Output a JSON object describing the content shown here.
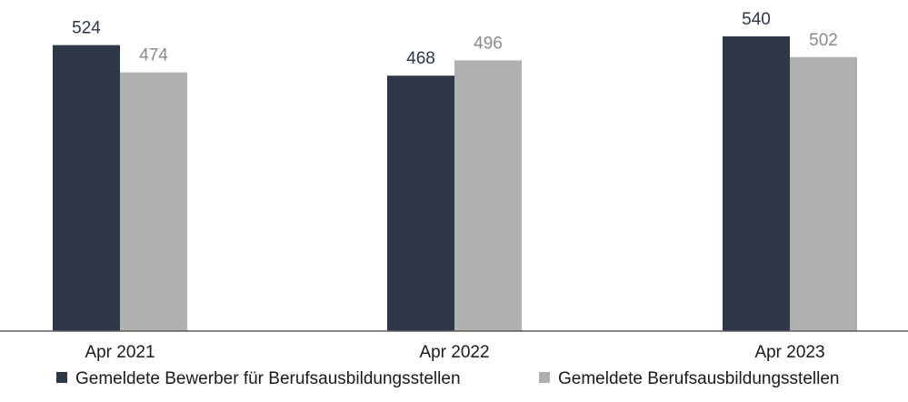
{
  "chart_data": {
    "type": "bar",
    "categories": [
      "Apr 2021",
      "Apr 2022",
      "Apr 2023"
    ],
    "series": [
      {
        "name": "Gemeldete Bewerber für Berufsausbildungsstellen",
        "values": [
          524,
          468,
          540
        ],
        "color": "#2e3648",
        "label_color": "#2e3648"
      },
      {
        "name": "Gemeldete Berufsausbildungsstellen",
        "values": [
          474,
          496,
          502
        ],
        "color": "#b0b0b0",
        "label_color": "#8a8a8a"
      }
    ],
    "ylim": [
      0,
      600
    ],
    "grid": false,
    "legend_position": "bottom"
  }
}
